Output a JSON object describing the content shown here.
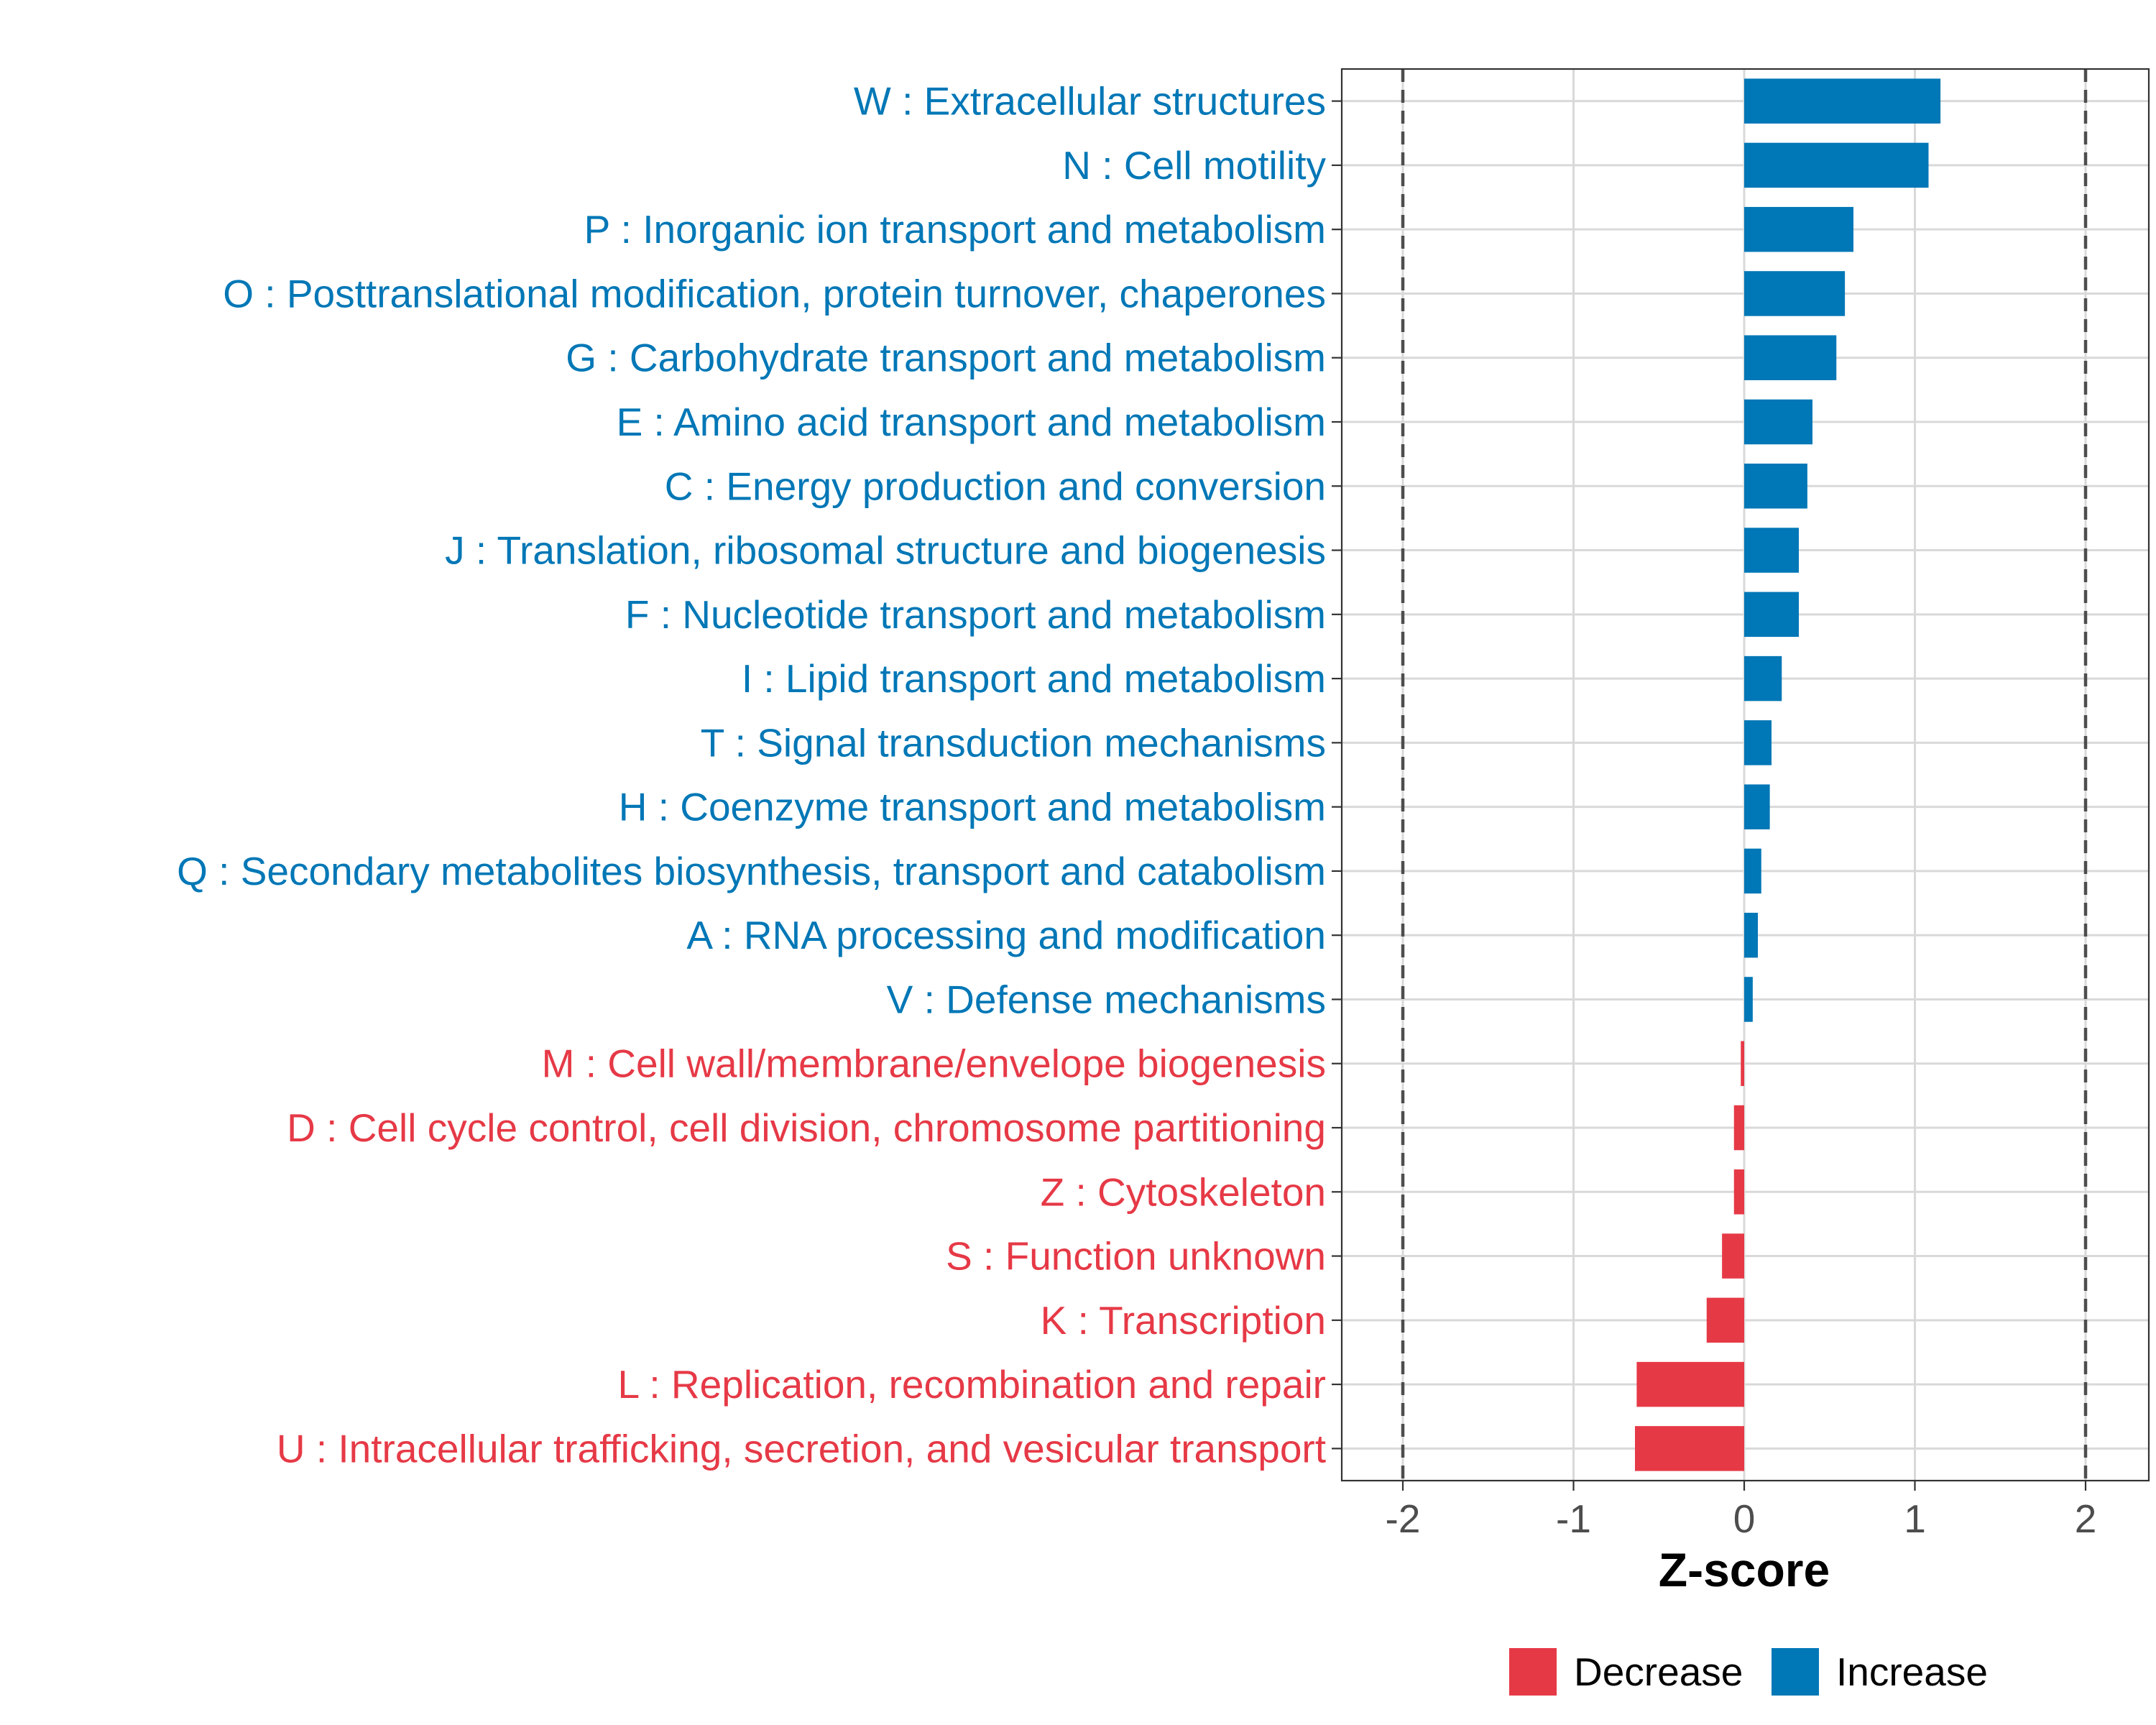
{
  "chart_data": {
    "type": "bar",
    "orientation": "horizontal",
    "xlabel": "Z-score",
    "ylabel": "",
    "xlim": [
      -2.36,
      2.36
    ],
    "x_ticks": [
      -2,
      -1,
      0,
      1,
      2
    ],
    "x_tick_labels": [
      "-2",
      "-1",
      "0",
      "1",
      "2"
    ],
    "reference_lines": [
      -2,
      2
    ],
    "grid": true,
    "legend_position": "bottom",
    "colors": {
      "Decrease": "#E63946",
      "Increase": "#0077B6"
    },
    "categories": [
      {
        "label": "W : Extracellular structures",
        "value": 1.15,
        "group": "Increase"
      },
      {
        "label": "N : Cell motility",
        "value": 1.08,
        "group": "Increase"
      },
      {
        "label": "P : Inorganic ion transport and metabolism",
        "value": 0.64,
        "group": "Increase"
      },
      {
        "label": "O : Posttranslational modification, protein turnover, chaperones",
        "value": 0.59,
        "group": "Increase"
      },
      {
        "label": "G : Carbohydrate transport and metabolism",
        "value": 0.54,
        "group": "Increase"
      },
      {
        "label": "E : Amino acid transport and metabolism",
        "value": 0.4,
        "group": "Increase"
      },
      {
        "label": "C : Energy production and conversion",
        "value": 0.37,
        "group": "Increase"
      },
      {
        "label": "J : Translation, ribosomal structure and biogenesis",
        "value": 0.32,
        "group": "Increase"
      },
      {
        "label": "F : Nucleotide transport and metabolism",
        "value": 0.32,
        "group": "Increase"
      },
      {
        "label": "I : Lipid transport and metabolism",
        "value": 0.22,
        "group": "Increase"
      },
      {
        "label": "T : Signal transduction mechanisms",
        "value": 0.16,
        "group": "Increase"
      },
      {
        "label": "H : Coenzyme transport and metabolism",
        "value": 0.15,
        "group": "Increase"
      },
      {
        "label": "Q : Secondary metabolites biosynthesis, transport and catabolism",
        "value": 0.1,
        "group": "Increase"
      },
      {
        "label": "A : RNA processing and modification",
        "value": 0.08,
        "group": "Increase"
      },
      {
        "label": "V : Defense mechanisms",
        "value": 0.05,
        "group": "Increase"
      },
      {
        "label": "M : Cell wall/membrane/envelope biogenesis",
        "value": -0.02,
        "group": "Decrease"
      },
      {
        "label": "D : Cell cycle control, cell division, chromosome partitioning",
        "value": -0.06,
        "group": "Decrease"
      },
      {
        "label": "Z : Cytoskeleton",
        "value": -0.06,
        "group": "Decrease"
      },
      {
        "label": "S : Function unknown",
        "value": -0.13,
        "group": "Decrease"
      },
      {
        "label": "K : Transcription",
        "value": -0.22,
        "group": "Decrease"
      },
      {
        "label": "L : Replication, recombination and repair",
        "value": -0.63,
        "group": "Decrease"
      },
      {
        "label": "U : Intracellular trafficking, secretion, and vesicular transport",
        "value": -0.64,
        "group": "Decrease"
      }
    ],
    "legend": [
      {
        "label": "Decrease",
        "color": "#E63946"
      },
      {
        "label": "Increase",
        "color": "#0077B6"
      }
    ]
  }
}
